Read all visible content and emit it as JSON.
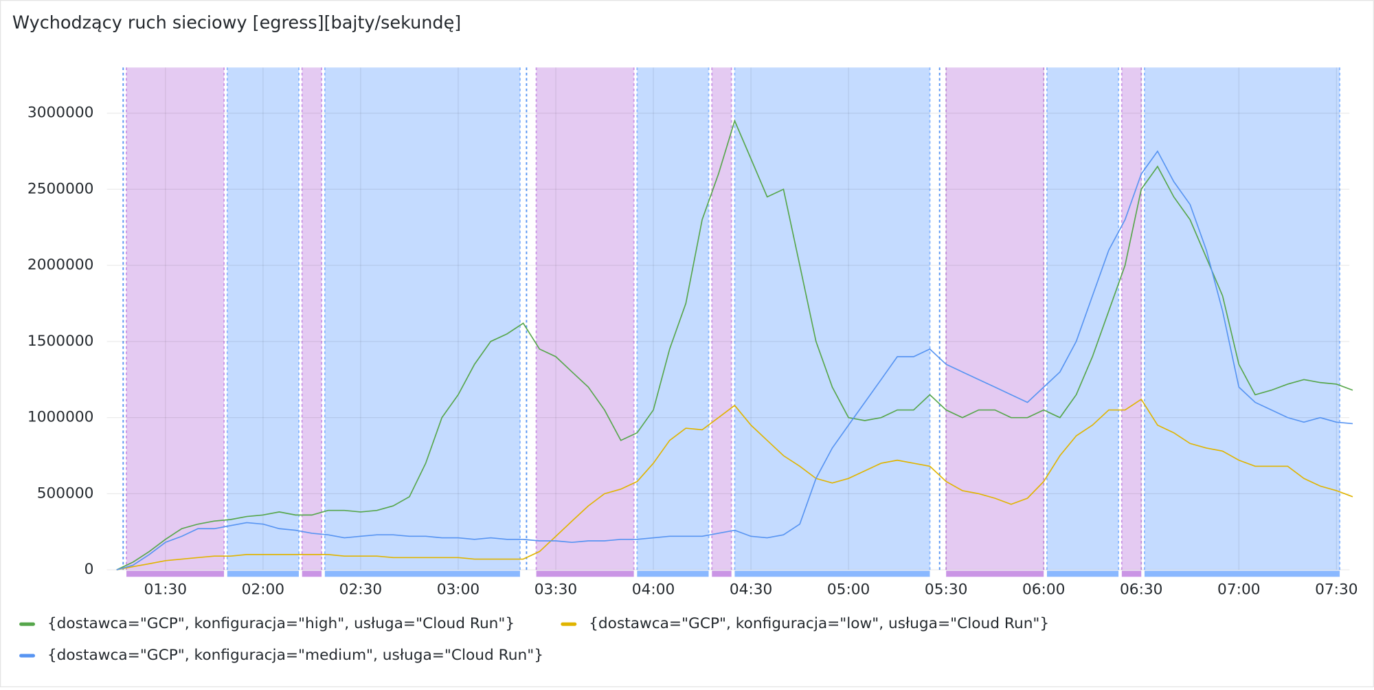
{
  "chart_data": {
    "type": "line",
    "title": "Wychodzący ruch sieciowy [egress][bajty/sekundę]",
    "x": [
      "01:15",
      "01:20",
      "01:25",
      "01:30",
      "01:35",
      "01:40",
      "01:45",
      "01:50",
      "01:55",
      "02:00",
      "02:05",
      "02:10",
      "02:15",
      "02:20",
      "02:25",
      "02:30",
      "02:35",
      "02:40",
      "02:45",
      "02:50",
      "02:55",
      "03:00",
      "03:05",
      "03:10",
      "03:15",
      "03:20",
      "03:25",
      "03:30",
      "03:35",
      "03:40",
      "03:45",
      "03:50",
      "03:55",
      "04:00",
      "04:05",
      "04:10",
      "04:15",
      "04:20",
      "04:25",
      "04:30",
      "04:35",
      "04:40",
      "04:45",
      "04:50",
      "04:55",
      "05:00",
      "05:05",
      "05:10",
      "05:15",
      "05:20",
      "05:25",
      "05:30",
      "05:35",
      "05:40",
      "05:45",
      "05:50",
      "05:55",
      "06:00",
      "06:05",
      "06:10",
      "06:15",
      "06:20",
      "06:25",
      "06:30",
      "06:35",
      "06:40",
      "06:45",
      "06:50",
      "06:55",
      "07:00",
      "07:05",
      "07:10",
      "07:15",
      "07:20",
      "07:25",
      "07:30",
      "07:35"
    ],
    "series": [
      {
        "name": "{dostawca=\"GCP\", konfiguracja=\"high\", usługa=\"Cloud Run\"}",
        "color": "#56a64b",
        "values": [
          0,
          50000,
          120000,
          200000,
          270000,
          300000,
          320000,
          330000,
          350000,
          360000,
          380000,
          360000,
          360000,
          390000,
          390000,
          380000,
          390000,
          420000,
          480000,
          700000,
          1000000,
          1150000,
          1350000,
          1500000,
          1550000,
          1620000,
          1450000,
          1400000,
          1300000,
          1200000,
          1050000,
          850000,
          900000,
          1050000,
          1450000,
          1750000,
          2300000,
          2600000,
          2950000,
          2700000,
          2450000,
          2500000,
          2000000,
          1500000,
          1200000,
          1000000,
          980000,
          1000000,
          1050000,
          1050000,
          1150000,
          1050000,
          1000000,
          1050000,
          1050000,
          1000000,
          1000000,
          1050000,
          1000000,
          1150000,
          1400000,
          1700000,
          2000000,
          2500000,
          2650000,
          2450000,
          2300000,
          2050000,
          1800000,
          1350000,
          1150000,
          1180000,
          1220000,
          1250000,
          1230000,
          1220000,
          1180000
        ]
      },
      {
        "name": "{dostawca=\"GCP\", konfiguracja=\"low\", usługa=\"Cloud Run\"}",
        "color": "#e0b400",
        "values": [
          0,
          20000,
          40000,
          60000,
          70000,
          80000,
          90000,
          90000,
          100000,
          100000,
          100000,
          100000,
          100000,
          100000,
          90000,
          90000,
          90000,
          80000,
          80000,
          80000,
          80000,
          80000,
          70000,
          70000,
          70000,
          70000,
          120000,
          220000,
          320000,
          420000,
          500000,
          530000,
          580000,
          700000,
          850000,
          930000,
          920000,
          1000000,
          1080000,
          950000,
          850000,
          750000,
          680000,
          600000,
          570000,
          600000,
          650000,
          700000,
          720000,
          700000,
          680000,
          580000,
          520000,
          500000,
          470000,
          430000,
          470000,
          580000,
          750000,
          880000,
          950000,
          1050000,
          1050000,
          1120000,
          950000,
          900000,
          830000,
          800000,
          780000,
          720000,
          680000,
          680000,
          680000,
          600000,
          550000,
          520000,
          480000
        ]
      },
      {
        "name": "{dostawca=\"GCP\", konfiguracja=\"medium\", usługa=\"Cloud Run\"}",
        "color": "#5794f2",
        "values": [
          0,
          30000,
          100000,
          180000,
          220000,
          270000,
          270000,
          290000,
          310000,
          300000,
          270000,
          260000,
          240000,
          230000,
          210000,
          220000,
          230000,
          230000,
          220000,
          220000,
          210000,
          210000,
          200000,
          210000,
          200000,
          200000,
          190000,
          190000,
          180000,
          190000,
          190000,
          200000,
          200000,
          210000,
          220000,
          220000,
          220000,
          240000,
          260000,
          220000,
          210000,
          230000,
          300000,
          600000,
          800000,
          950000,
          1100000,
          1250000,
          1400000,
          1400000,
          1450000,
          1350000,
          1300000,
          1250000,
          1200000,
          1150000,
          1100000,
          1200000,
          1300000,
          1500000,
          1800000,
          2100000,
          2300000,
          2600000,
          2750000,
          2550000,
          2400000,
          2100000,
          1700000,
          1200000,
          1100000,
          1050000,
          1000000,
          970000,
          1000000,
          970000,
          960000
        ]
      }
    ],
    "xlim": [
      "01:12",
      "07:34"
    ],
    "xticks": [
      "01:30",
      "02:00",
      "02:30",
      "03:00",
      "03:30",
      "04:00",
      "04:30",
      "05:00",
      "05:30",
      "06:00",
      "06:30",
      "07:00",
      "07:30"
    ],
    "ylim": [
      0,
      3300000
    ],
    "yticks": [
      0,
      500000,
      1000000,
      1500000,
      2000000,
      2500000,
      3000000
    ],
    "grid": true,
    "regions": [
      {
        "start": "01:18",
        "end": "01:48",
        "color": "#ca95e5"
      },
      {
        "start": "01:49",
        "end": "02:11",
        "color": "#8ab8ff"
      },
      {
        "start": "02:12",
        "end": "02:18",
        "color": "#ca95e5"
      },
      {
        "start": "02:19",
        "end": "03:19",
        "color": "#8ab8ff"
      },
      {
        "start": "03:24",
        "end": "03:54",
        "color": "#ca95e5"
      },
      {
        "start": "03:55",
        "end": "04:17",
        "color": "#8ab8ff"
      },
      {
        "start": "04:18",
        "end": "04:24",
        "color": "#ca95e5"
      },
      {
        "start": "04:25",
        "end": "05:25",
        "color": "#8ab8ff"
      },
      {
        "start": "05:30",
        "end": "06:00",
        "color": "#ca95e5"
      },
      {
        "start": "06:01",
        "end": "06:23",
        "color": "#8ab8ff"
      },
      {
        "start": "06:24",
        "end": "06:30",
        "color": "#ca95e5"
      },
      {
        "start": "06:31",
        "end": "07:31",
        "color": "#8ab8ff"
      }
    ],
    "annotations": [
      "01:17",
      "03:21",
      "05:28"
    ]
  }
}
